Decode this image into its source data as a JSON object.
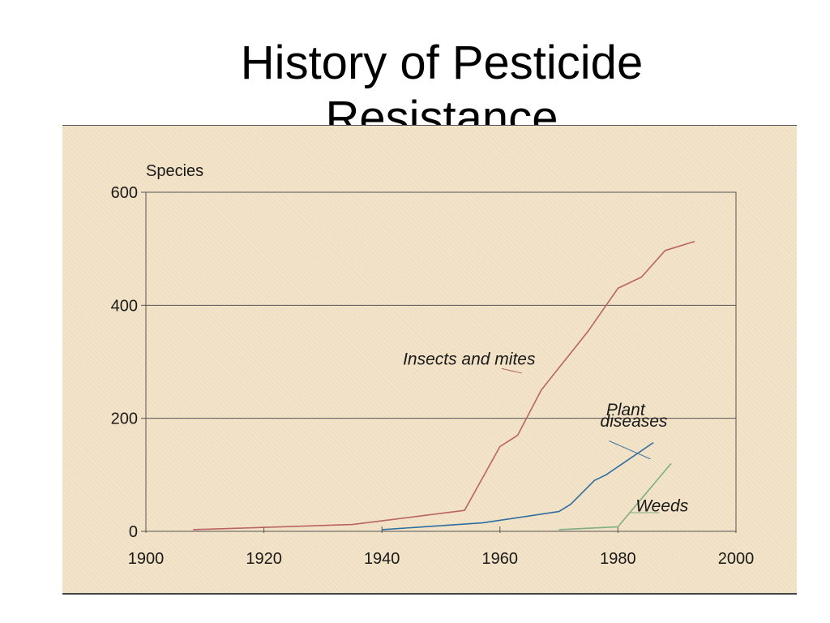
{
  "slide": {
    "title": "History of Pesticide\nResistance"
  },
  "chart_data": {
    "type": "line",
    "title": "History of Pesticide Resistance",
    "xlabel": "",
    "ylabel": "Species",
    "xlim": [
      1900,
      2000
    ],
    "ylim": [
      0,
      600
    ],
    "x_ticks": [
      1900,
      1920,
      1940,
      1960,
      1980,
      2000
    ],
    "y_ticks": [
      0,
      200,
      400,
      600
    ],
    "grid": "horizontal",
    "colors": {
      "background": "#f3e2c6",
      "axis": "#555555",
      "insects": "#b86464",
      "plant": "#2f6da0",
      "weeds": "#7fae84"
    },
    "series": [
      {
        "name": "Insects and mites",
        "color": "#b86464",
        "x": [
          1908,
          1935,
          1954,
          1960,
          1963,
          1967,
          1975,
          1980,
          1984,
          1988,
          1993
        ],
        "y": [
          3,
          12,
          37,
          150,
          170,
          250,
          355,
          430,
          450,
          497,
          513
        ]
      },
      {
        "name": "Plant diseases",
        "color": "#2f6da0",
        "x": [
          1940,
          1957,
          1970,
          1972,
          1976,
          1978,
          1986
        ],
        "y": [
          3,
          15,
          35,
          48,
          90,
          100,
          157
        ]
      },
      {
        "name": "Weeds",
        "color": "#7fae84",
        "x": [
          1970,
          1980,
          1989
        ],
        "y": [
          3,
          8,
          120
        ]
      }
    ],
    "annotations": [
      {
        "text": "Insects and mites",
        "x": 1966,
        "y": 295
      },
      {
        "text": "Plant",
        "x": 1978,
        "y": 205
      },
      {
        "text": "diseases",
        "x": 1977,
        "y": 185
      },
      {
        "text": "Weeds",
        "x": 1983,
        "y": 35
      }
    ]
  }
}
